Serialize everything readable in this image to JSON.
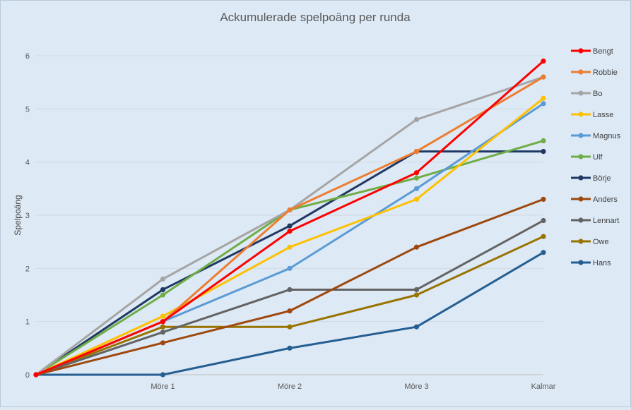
{
  "chart_data": {
    "type": "line",
    "title": "Ackumulerade spelpoäng per runda",
    "xlabel": "",
    "ylabel": "Spelpoäng",
    "categories": [
      "",
      "Möre 1",
      "Möre 2",
      "Möre 3",
      "Kalmar"
    ],
    "ylim": [
      0,
      6
    ],
    "yticks": [
      0,
      1,
      2,
      3,
      4,
      5,
      6
    ],
    "grid": true,
    "legend_position": "right",
    "series": [
      {
        "name": "Bengt",
        "color": "#ff0000",
        "values": [
          0,
          1.0,
          2.7,
          3.8,
          5.9
        ]
      },
      {
        "name": "Robbie",
        "color": "#ed7d31",
        "values": [
          0,
          1.0,
          3.1,
          4.2,
          5.6
        ]
      },
      {
        "name": "Bo",
        "color": "#a5a5a5",
        "values": [
          0,
          1.8,
          3.1,
          4.8,
          5.6
        ]
      },
      {
        "name": "Lasse",
        "color": "#ffc000",
        "values": [
          0,
          1.1,
          2.4,
          3.3,
          5.2
        ]
      },
      {
        "name": "Magnus",
        "color": "#5b9bd5",
        "values": [
          0,
          1.0,
          2.0,
          3.5,
          5.1
        ]
      },
      {
        "name": "Ulf",
        "color": "#70ad47",
        "values": [
          0,
          1.5,
          3.1,
          3.7,
          4.4
        ]
      },
      {
        "name": "Börje",
        "color": "#203864",
        "values": [
          0,
          1.6,
          2.8,
          4.2,
          4.2
        ]
      },
      {
        "name": "Anders",
        "color": "#9e480e",
        "values": [
          0,
          0.6,
          1.2,
          2.4,
          3.3
        ]
      },
      {
        "name": "Lennart",
        "color": "#636363",
        "values": [
          0,
          0.8,
          1.6,
          1.6,
          2.9
        ]
      },
      {
        "name": "Owe",
        "color": "#997300",
        "values": [
          0,
          0.9,
          0.9,
          1.5,
          2.6
        ]
      },
      {
        "name": "Hans",
        "color": "#255e91",
        "values": [
          0,
          0,
          0.5,
          0.9,
          2.3
        ]
      }
    ]
  }
}
